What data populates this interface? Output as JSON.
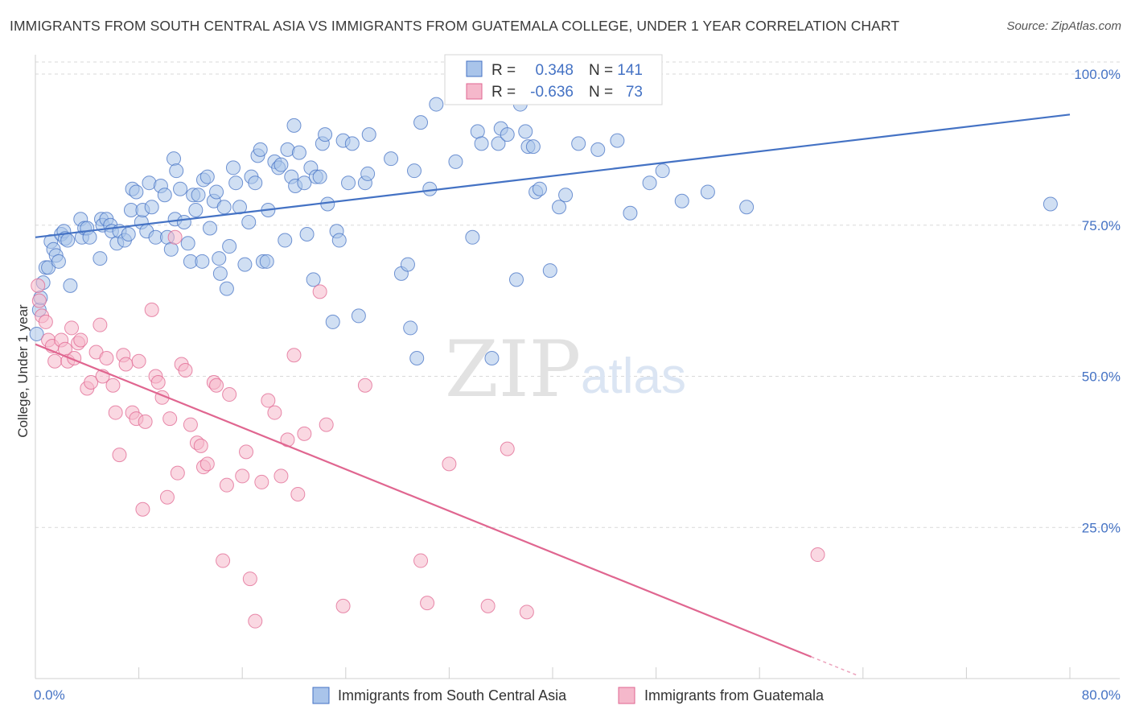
{
  "title": "IMMIGRANTS FROM SOUTH CENTRAL ASIA VS IMMIGRANTS FROM GUATEMALA COLLEGE, UNDER 1 YEAR CORRELATION CHART",
  "source": "Source: ZipAtlas.com",
  "watermark": {
    "zip": "ZIP",
    "atlas": "atlas"
  },
  "colors": {
    "blue": "#4472c4",
    "blue_fill": "#a9c4ea",
    "pink": "#e06690",
    "pink_fill": "#f5b8cb",
    "grid": "#d9d9d9",
    "tick_text": "#4472c4"
  },
  "stats": [
    {
      "r_label": "R =",
      "r_value": "0.348",
      "n_label": "N =",
      "n_value": "141"
    },
    {
      "r_label": "R =",
      "r_value": "-0.636",
      "n_label": "N =",
      "n_value": "73"
    }
  ],
  "chart_data": {
    "type": "scatter",
    "title": "IMMIGRANTS FROM SOUTH CENTRAL ASIA VS IMMIGRANTS FROM GUATEMALA COLLEGE, UNDER 1 YEAR CORRELATION CHART",
    "xlabel": "",
    "ylabel": "College, Under 1 year",
    "xlim": [
      0,
      80
    ],
    "ylim": [
      0,
      102
    ],
    "x_tick_labels": [
      "0.0%",
      "80.0%"
    ],
    "y_ticks": [
      25,
      50,
      75,
      100
    ],
    "y_tick_labels": [
      "25.0%",
      "50.0%",
      "75.0%",
      "100.0%"
    ],
    "grid": true,
    "legend_position": "bottom",
    "series": [
      {
        "name": "Immigrants from South Central Asia",
        "color": "#4472c4",
        "r": 0.348,
        "n": 141,
        "trend": {
          "x": [
            0,
            80
          ],
          "y": [
            73,
            93.3
          ]
        },
        "points": [
          [
            0.1,
            57
          ],
          [
            0.3,
            61
          ],
          [
            0.4,
            63
          ],
          [
            0.6,
            65.5
          ],
          [
            0.8,
            68
          ],
          [
            1.0,
            68
          ],
          [
            1.2,
            72.3
          ],
          [
            1.4,
            71
          ],
          [
            1.6,
            70
          ],
          [
            1.8,
            69
          ],
          [
            2.0,
            73.5
          ],
          [
            2.2,
            74
          ],
          [
            2.3,
            72.8
          ],
          [
            2.5,
            72.5
          ],
          [
            2.7,
            65
          ],
          [
            3.5,
            76
          ],
          [
            3.6,
            73
          ],
          [
            3.8,
            74.5
          ],
          [
            4.0,
            74.5
          ],
          [
            4.2,
            73
          ],
          [
            5.0,
            69.5
          ],
          [
            5.1,
            76
          ],
          [
            5.2,
            75
          ],
          [
            5.5,
            76
          ],
          [
            5.8,
            75
          ],
          [
            5.9,
            74
          ],
          [
            6.3,
            72
          ],
          [
            6.5,
            74
          ],
          [
            6.9,
            72.5
          ],
          [
            7.2,
            73.5
          ],
          [
            7.4,
            77.5
          ],
          [
            7.5,
            81
          ],
          [
            7.8,
            80.5
          ],
          [
            8.2,
            75.5
          ],
          [
            8.3,
            77.5
          ],
          [
            8.6,
            74
          ],
          [
            8.8,
            82
          ],
          [
            9.0,
            78
          ],
          [
            9.3,
            73
          ],
          [
            9.7,
            81.5
          ],
          [
            10.0,
            80
          ],
          [
            10.2,
            73
          ],
          [
            10.5,
            71
          ],
          [
            10.7,
            86
          ],
          [
            10.8,
            76
          ],
          [
            10.9,
            84
          ],
          [
            11.2,
            81
          ],
          [
            11.5,
            75.5
          ],
          [
            11.8,
            72
          ],
          [
            12.0,
            69
          ],
          [
            12.2,
            80
          ],
          [
            12.4,
            77.5
          ],
          [
            12.6,
            80
          ],
          [
            12.9,
            69
          ],
          [
            13.0,
            82.5
          ],
          [
            13.3,
            83
          ],
          [
            13.5,
            74.5
          ],
          [
            13.8,
            79
          ],
          [
            14.0,
            80.5
          ],
          [
            14.2,
            69.5
          ],
          [
            14.3,
            67
          ],
          [
            14.6,
            78
          ],
          [
            14.8,
            64.5
          ],
          [
            15.0,
            71.5
          ],
          [
            15.3,
            84.5
          ],
          [
            15.5,
            82
          ],
          [
            15.8,
            78
          ],
          [
            16.2,
            68.5
          ],
          [
            16.5,
            75.5
          ],
          [
            16.7,
            83
          ],
          [
            17.0,
            82
          ],
          [
            17.2,
            86.5
          ],
          [
            17.4,
            87.5
          ],
          [
            17.6,
            69
          ],
          [
            17.9,
            69
          ],
          [
            18.0,
            77.5
          ],
          [
            18.5,
            85.5
          ],
          [
            18.8,
            84.5
          ],
          [
            19.0,
            85
          ],
          [
            19.3,
            72.5
          ],
          [
            19.5,
            87.5
          ],
          [
            19.8,
            83
          ],
          [
            20.0,
            91.5
          ],
          [
            20.1,
            81.5
          ],
          [
            20.4,
            87
          ],
          [
            20.8,
            82
          ],
          [
            21.0,
            73.5
          ],
          [
            21.3,
            84.5
          ],
          [
            21.5,
            66
          ],
          [
            21.7,
            83
          ],
          [
            22.0,
            83
          ],
          [
            22.2,
            88.5
          ],
          [
            22.4,
            90
          ],
          [
            22.6,
            78.5
          ],
          [
            23.0,
            59
          ],
          [
            23.3,
            74
          ],
          [
            23.5,
            72.5
          ],
          [
            23.8,
            89
          ],
          [
            24.2,
            82
          ],
          [
            24.5,
            88.5
          ],
          [
            25.0,
            60
          ],
          [
            25.5,
            82
          ],
          [
            25.7,
            83.5
          ],
          [
            25.8,
            90
          ],
          [
            27.5,
            86
          ],
          [
            28.3,
            67
          ],
          [
            28.8,
            68.5
          ],
          [
            29.0,
            58
          ],
          [
            29.3,
            84
          ],
          [
            29.5,
            53
          ],
          [
            29.8,
            92
          ],
          [
            30.5,
            81
          ],
          [
            31.0,
            95
          ],
          [
            32.5,
            85.5
          ],
          [
            33.8,
            73
          ],
          [
            34.2,
            90.5
          ],
          [
            34.5,
            88.5
          ],
          [
            35.3,
            53
          ],
          [
            35.8,
            88.5
          ],
          [
            36.0,
            91
          ],
          [
            36.5,
            90
          ],
          [
            37.2,
            66
          ],
          [
            37.5,
            95
          ],
          [
            37.9,
            90.5
          ],
          [
            38.1,
            88
          ],
          [
            38.5,
            88
          ],
          [
            38.7,
            80.5
          ],
          [
            39.0,
            81
          ],
          [
            39.8,
            67.5
          ],
          [
            40.5,
            78
          ],
          [
            41.0,
            80
          ],
          [
            42.0,
            88.5
          ],
          [
            43.5,
            87.5
          ],
          [
            45.0,
            89
          ],
          [
            46.0,
            77
          ],
          [
            47.5,
            82
          ],
          [
            48.5,
            84
          ],
          [
            50.0,
            79
          ],
          [
            52.0,
            80.5
          ],
          [
            55.0,
            78
          ],
          [
            78.5,
            78.5
          ]
        ]
      },
      {
        "name": "Immigrants from Guatemala",
        "color": "#e06690",
        "r": -0.636,
        "n": 73,
        "trend": {
          "x": [
            0,
            60
          ],
          "y": [
            55.3,
            3.6
          ]
        },
        "points": [
          [
            0.2,
            65
          ],
          [
            0.3,
            62.5
          ],
          [
            0.5,
            60
          ],
          [
            0.8,
            59
          ],
          [
            1.0,
            56
          ],
          [
            1.3,
            55
          ],
          [
            1.5,
            52.5
          ],
          [
            2.0,
            56
          ],
          [
            2.3,
            54.5
          ],
          [
            2.5,
            52.5
          ],
          [
            2.8,
            58
          ],
          [
            3.0,
            53
          ],
          [
            3.3,
            55.5
          ],
          [
            3.5,
            56
          ],
          [
            4.0,
            48
          ],
          [
            4.3,
            49
          ],
          [
            4.7,
            54
          ],
          [
            5.0,
            58.5
          ],
          [
            5.2,
            50
          ],
          [
            5.5,
            53
          ],
          [
            6.0,
            48.5
          ],
          [
            6.2,
            44
          ],
          [
            6.5,
            37
          ],
          [
            6.8,
            53.5
          ],
          [
            7.0,
            52
          ],
          [
            7.5,
            44
          ],
          [
            7.8,
            43
          ],
          [
            8.0,
            52.5
          ],
          [
            8.3,
            28
          ],
          [
            8.5,
            42.5
          ],
          [
            9.0,
            61
          ],
          [
            9.3,
            50
          ],
          [
            9.5,
            49
          ],
          [
            9.8,
            46.5
          ],
          [
            10.2,
            30
          ],
          [
            10.4,
            43
          ],
          [
            10.8,
            73
          ],
          [
            11.0,
            34
          ],
          [
            11.3,
            52
          ],
          [
            11.6,
            51
          ],
          [
            12.0,
            42
          ],
          [
            12.5,
            39
          ],
          [
            12.8,
            38.5
          ],
          [
            13.0,
            35
          ],
          [
            13.3,
            35.5
          ],
          [
            13.8,
            49
          ],
          [
            14.0,
            48.5
          ],
          [
            14.5,
            19.5
          ],
          [
            14.8,
            32
          ],
          [
            15.0,
            47
          ],
          [
            16.0,
            33.5
          ],
          [
            16.3,
            37.5
          ],
          [
            16.6,
            16.5
          ],
          [
            17.0,
            9.5
          ],
          [
            17.5,
            32.5
          ],
          [
            18.0,
            46
          ],
          [
            18.5,
            44
          ],
          [
            19.0,
            33.5
          ],
          [
            19.5,
            39.5
          ],
          [
            20.0,
            53.5
          ],
          [
            20.3,
            30.5
          ],
          [
            20.8,
            40.5
          ],
          [
            22.0,
            64
          ],
          [
            22.5,
            42
          ],
          [
            23.8,
            12
          ],
          [
            25.5,
            48.5
          ],
          [
            29.8,
            19.5
          ],
          [
            30.3,
            12.5
          ],
          [
            32.0,
            35.5
          ],
          [
            35.0,
            12
          ],
          [
            36.5,
            38
          ],
          [
            38.0,
            11
          ],
          [
            60.5,
            20.5
          ]
        ]
      }
    ]
  }
}
